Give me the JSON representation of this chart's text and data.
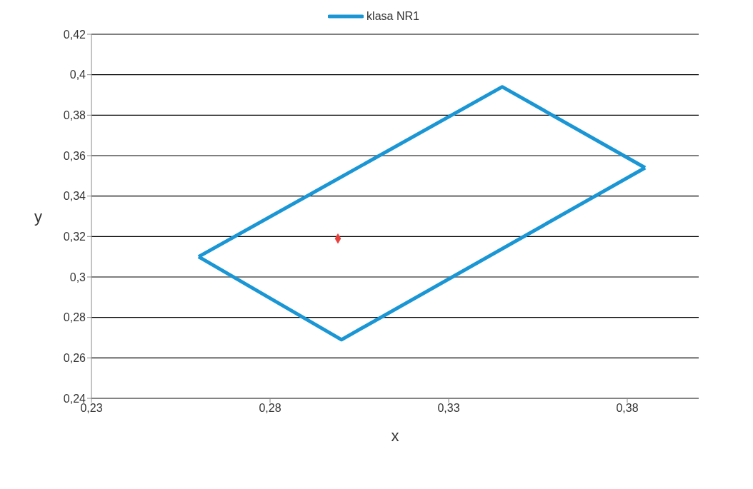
{
  "chart_data": {
    "type": "line",
    "xlabel": "x",
    "ylabel": "y",
    "grid": "y",
    "legend": "top",
    "marker": "none",
    "xlim": [
      0.23,
      0.4
    ],
    "xticks": [
      {
        "value": 0.23,
        "label": "0,23"
      },
      {
        "value": 0.28,
        "label": "0,28"
      },
      {
        "value": 0.33,
        "label": "0,33"
      },
      {
        "value": 0.38,
        "label": "0,38"
      }
    ],
    "ylim": [
      0.24,
      0.42
    ],
    "yticks": [
      {
        "value": 0.24,
        "label": "0,24"
      },
      {
        "value": 0.26,
        "label": "0,26"
      },
      {
        "value": 0.28,
        "label": "0,28"
      },
      {
        "value": 0.3,
        "label": "0,3"
      },
      {
        "value": 0.32,
        "label": "0,32"
      },
      {
        "value": 0.34,
        "label": "0,34"
      },
      {
        "value": 0.36,
        "label": "0,36"
      },
      {
        "value": 0.38,
        "label": "0,38"
      },
      {
        "value": 0.4,
        "label": "0,4"
      },
      {
        "value": 0.42,
        "label": "0,42"
      }
    ],
    "series": [
      {
        "name": "klasa NR1",
        "color": "#1a96d4",
        "x": [
          0.26,
          0.345,
          0.385
        ],
        "values": [
          0.31,
          0.394,
          0.354
        ]
      },
      {
        "color": "#1a96d4",
        "x": [
          0.26,
          0.3,
          0.385
        ],
        "values": [
          0.31,
          0.269,
          0.354
        ]
      },
      {
        "type": "scatter",
        "marker": "diamond",
        "color": "#e8413c",
        "x": [
          0.299
        ],
        "values": [
          0.319
        ]
      }
    ]
  }
}
